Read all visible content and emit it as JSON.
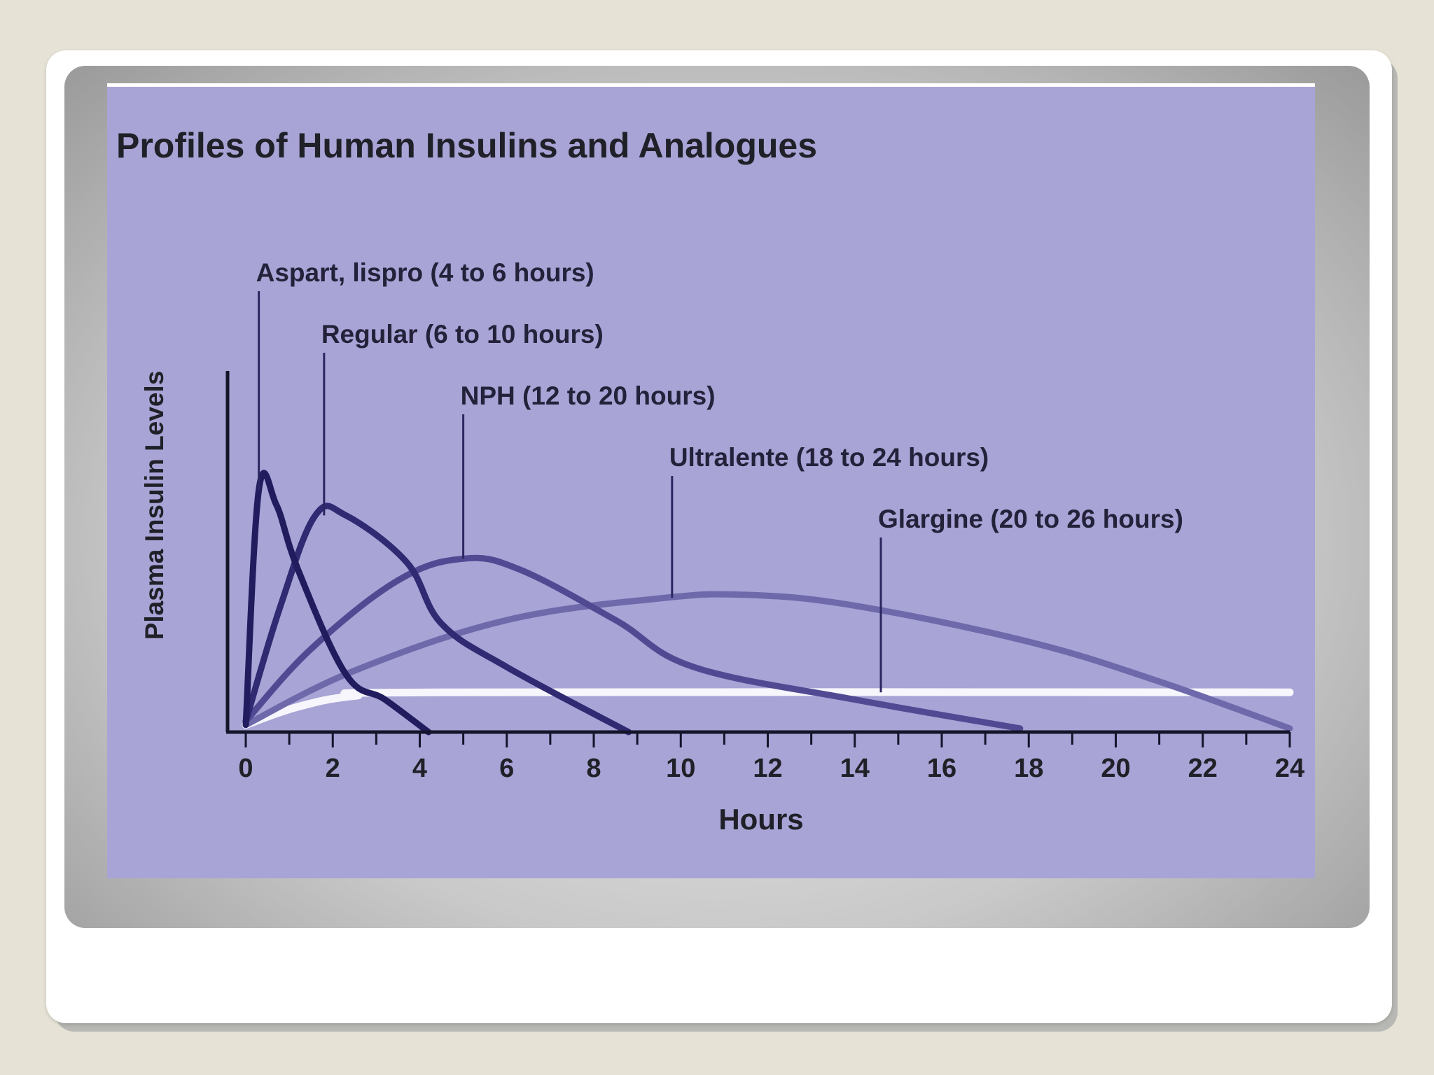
{
  "chart_data": {
    "type": "line",
    "title": "Profiles of Human Insulins and Analogues",
    "xlabel": "Hours",
    "ylabel": "Plasma Insulin Levels",
    "xlim": [
      0,
      24
    ],
    "x_ticks": [
      "0",
      "2",
      "4",
      "6",
      "8",
      "10",
      "12",
      "14",
      "16",
      "18",
      "20",
      "22",
      "24"
    ],
    "ylim": [
      0,
      1
    ],
    "grid": false,
    "series": [
      {
        "name": "Aspart, lispro (4 to 6 hours)",
        "color": "#201c5e",
        "label_x": 0.3,
        "points": [
          [
            0,
            0.02
          ],
          [
            0.3,
            0.67
          ],
          [
            0.7,
            0.63
          ],
          [
            1.2,
            0.45
          ],
          [
            2.3,
            0.16
          ],
          [
            3.2,
            0.09
          ],
          [
            4.2,
            0
          ]
        ]
      },
      {
        "name": "Regular (6 to 10 hours)",
        "color": "#2f2a72",
        "label_x": 1.8,
        "points": [
          [
            0,
            0.03
          ],
          [
            0.8,
            0.35
          ],
          [
            1.6,
            0.6
          ],
          [
            2.3,
            0.6
          ],
          [
            3.7,
            0.47
          ],
          [
            4.5,
            0.3
          ],
          [
            6.0,
            0.18
          ],
          [
            8.8,
            0
          ]
        ]
      },
      {
        "name": "NPH (12 to 20 hours)",
        "color": "#514a93",
        "label_x": 5.0,
        "points": [
          [
            0,
            0.03
          ],
          [
            1.5,
            0.23
          ],
          [
            3.5,
            0.42
          ],
          [
            5.0,
            0.48
          ],
          [
            6.3,
            0.45
          ],
          [
            8.5,
            0.31
          ],
          [
            10.3,
            0.18
          ],
          [
            14.0,
            0.09
          ],
          [
            17.8,
            0.01
          ]
        ]
      },
      {
        "name": "Ultralente (18 to 24 hours)",
        "color": "#6e69aa",
        "label_x": 9.8,
        "points": [
          [
            0,
            0.02
          ],
          [
            2.5,
            0.17
          ],
          [
            6.0,
            0.31
          ],
          [
            9.5,
            0.37
          ],
          [
            11.5,
            0.38
          ],
          [
            14.0,
            0.35
          ],
          [
            18.0,
            0.25
          ],
          [
            21.0,
            0.14
          ],
          [
            24.0,
            0.01
          ]
        ]
      },
      {
        "name": "Glargine (20 to 26 hours)",
        "color": "#f6f6fc",
        "label_x": 14.6,
        "points": [
          [
            0,
            0.02
          ],
          [
            1.2,
            0.07
          ],
          [
            2.5,
            0.1
          ],
          [
            4.5,
            0.11
          ],
          [
            24.0,
            0.11
          ]
        ]
      }
    ]
  }
}
